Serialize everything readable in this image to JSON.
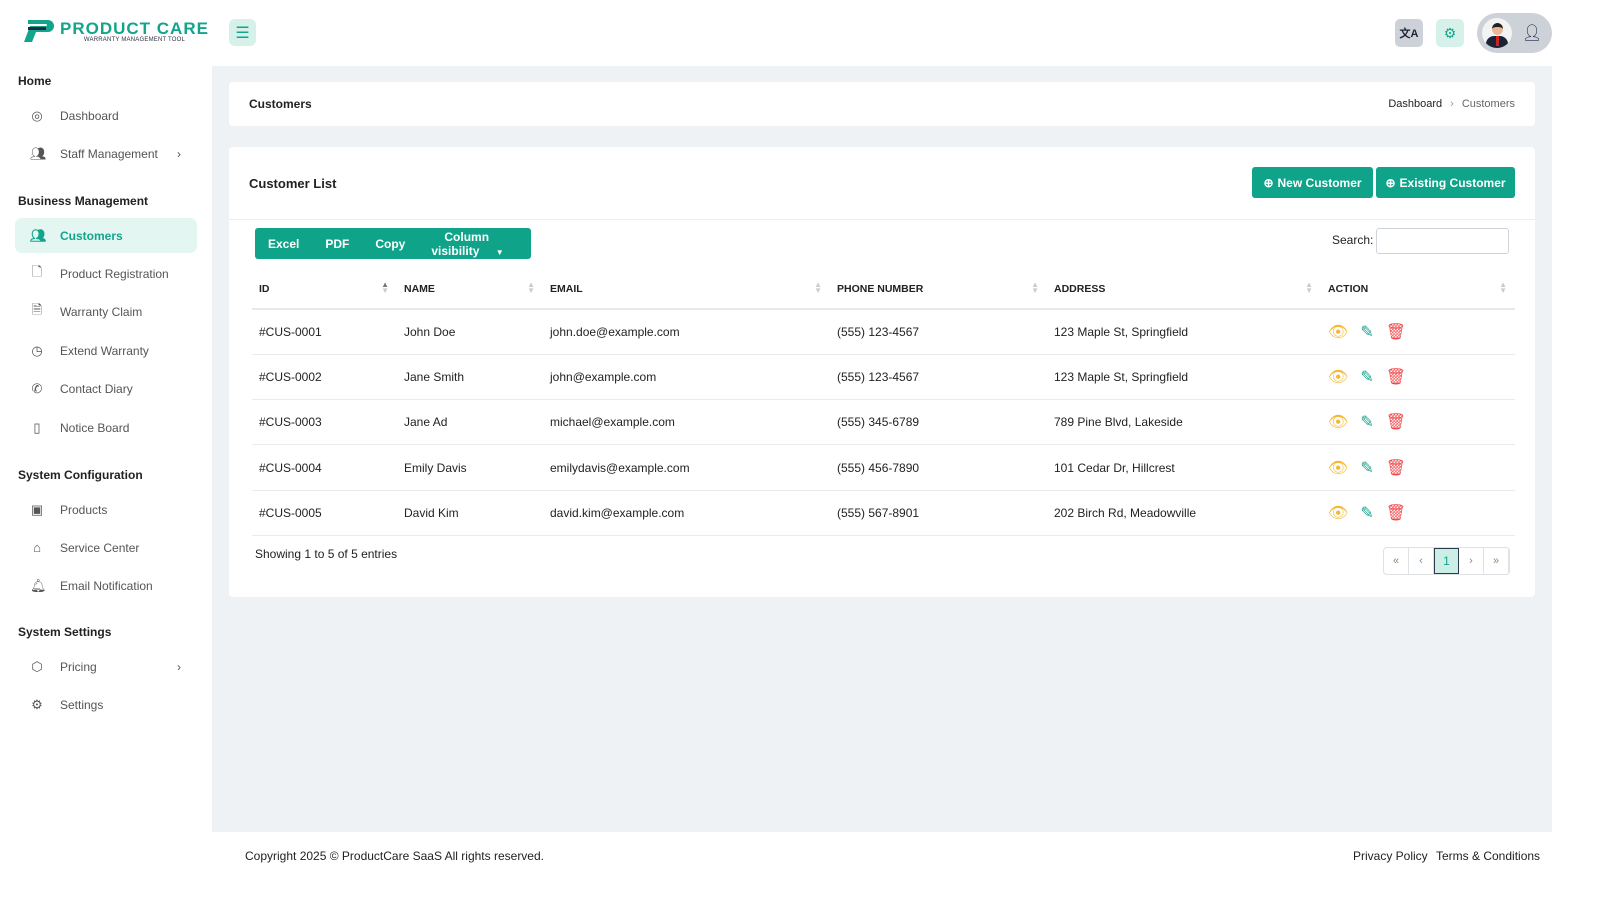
{
  "brand": {
    "name": "PRODUCT CARE",
    "tagline": "WARRANTY MANAGEMENT TOOL",
    "accent": "#0fa389"
  },
  "header": {
    "menu_icon": "hamburger-icon",
    "translate_icon": "translate-icon",
    "settings_icon": "gear-icon",
    "user_icon": "user-check-icon"
  },
  "sidebar": {
    "sections": [
      {
        "title": "Home",
        "items": [
          {
            "label": "Dashboard",
            "icon": "dashboard-icon"
          },
          {
            "label": "Staff Management",
            "icon": "users-icon",
            "chevron": true
          }
        ]
      },
      {
        "title": "Business Management",
        "items": [
          {
            "label": "Customers",
            "icon": "users-icon",
            "active": true
          },
          {
            "label": "Product Registration",
            "icon": "file-plus-icon"
          },
          {
            "label": "Warranty Claim",
            "icon": "file-text-icon"
          },
          {
            "label": "Extend Warranty",
            "icon": "clock-icon"
          },
          {
            "label": "Contact Diary",
            "icon": "phone-icon"
          },
          {
            "label": "Notice Board",
            "icon": "book-icon"
          }
        ]
      },
      {
        "title": "System Configuration",
        "items": [
          {
            "label": "Products",
            "icon": "box-icon"
          },
          {
            "label": "Service Center",
            "icon": "home-icon"
          },
          {
            "label": "Email Notification",
            "icon": "bell-icon"
          }
        ]
      },
      {
        "title": "System Settings",
        "items": [
          {
            "label": "Pricing",
            "icon": "package-icon",
            "chevron": true
          },
          {
            "label": "Settings",
            "icon": "gear-icon"
          }
        ]
      }
    ]
  },
  "breadcrumb": {
    "title": "Customers",
    "items": [
      "Dashboard",
      "Customers"
    ]
  },
  "list": {
    "title": "Customer List",
    "new_button": "New Customer",
    "existing_button": "Existing Customer",
    "export": [
      "Excel",
      "PDF",
      "Copy",
      "Column visibility"
    ],
    "search_label": "Search:",
    "search_value": "",
    "columns": [
      "ID",
      "NAME",
      "EMAIL",
      "PHONE NUMBER",
      "ADDRESS",
      "ACTION"
    ],
    "rows": [
      [
        "#CUS-0001",
        "John Doe",
        "john.doe@example.com",
        "(555) 123-4567",
        "123 Maple St, Springfield"
      ],
      [
        "#CUS-0002",
        "Jane Smith",
        "john@example.com",
        "(555) 123-4567",
        "123 Maple St, Springfield"
      ],
      [
        "#CUS-0003",
        "Jane Ad",
        "michael@example.com",
        "(555) 345-6789",
        "789 Pine Blvd, Lakeside"
      ],
      [
        "#CUS-0004",
        "Emily Davis",
        "emilydavis@example.com",
        "(555) 456-7890",
        "101 Cedar Dr, Hillcrest"
      ],
      [
        "#CUS-0005",
        "David Kim",
        "david.kim@example.com",
        "(555) 567-8901",
        "202 Birch Rd, Meadowville"
      ]
    ],
    "info": "Showing 1 to 5 of 5 entries",
    "pagination": [
      "«",
      "‹",
      "1",
      "›",
      "»"
    ]
  },
  "footer": {
    "copyright": "Copyright 2025 © ProductCare SaaS All rights reserved.",
    "links": [
      "Privacy Policy",
      "Terms & Conditions"
    ]
  }
}
